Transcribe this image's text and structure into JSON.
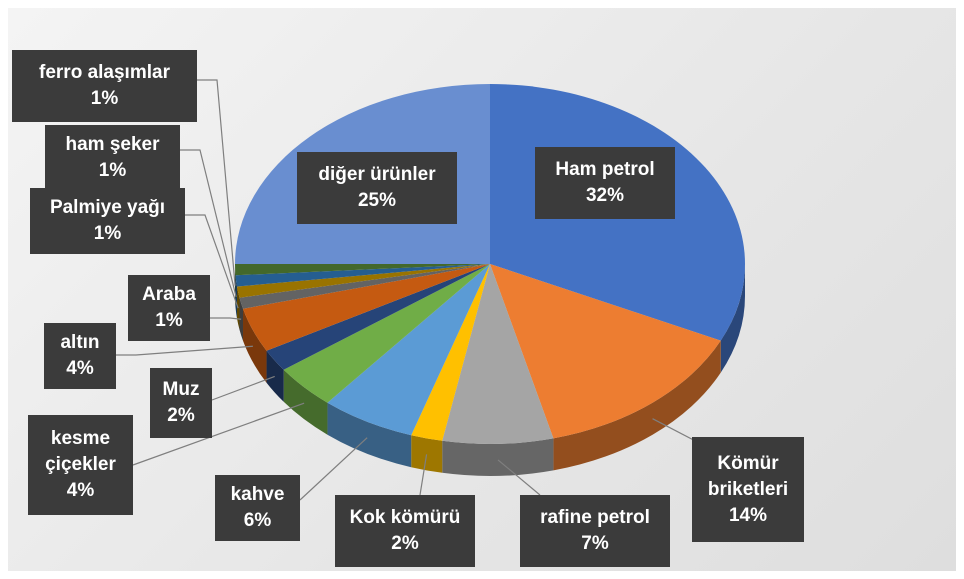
{
  "chart_data": {
    "type": "pie3d",
    "categories": [
      "Ham petrol",
      "Kömür briketleri",
      "rafine petrol",
      "Kok kömürü",
      "kahve",
      "kesme çiçekler",
      "Muz",
      "altın",
      "Araba",
      "Palmiye yağı",
      "ham şeker",
      "ferro alaşımlar",
      "diğer ürünler"
    ],
    "values": [
      32,
      14,
      7,
      2,
      6,
      4,
      2,
      4,
      1,
      1,
      1,
      1,
      25
    ],
    "value_labels": [
      "32%",
      "14%",
      "7%",
      "2%",
      "6%",
      "4%",
      "2%",
      "4%",
      "1%",
      "1%",
      "1%",
      "1%",
      "25%"
    ],
    "colors": [
      "#4472c4",
      "#ed7d31",
      "#a5a5a5",
      "#ffc000",
      "#5b9bd5",
      "#70ad47",
      "#264478",
      "#c55a11",
      "#636363",
      "#997300",
      "#255e91",
      "#43682b",
      "#698ed0"
    ]
  }
}
